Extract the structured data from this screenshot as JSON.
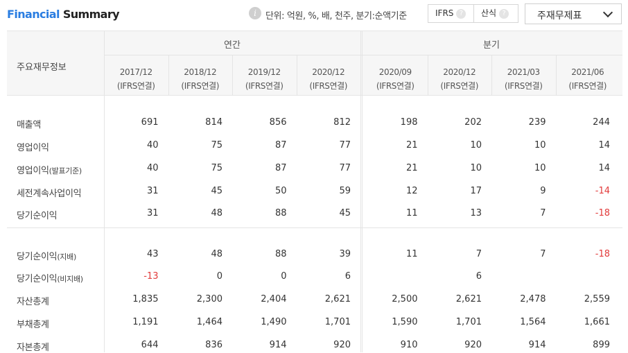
{
  "header": {
    "title_part1": "Financial",
    "title_part2": "Summary",
    "info_glyph": "i",
    "unit_text": "단위: 억원, %, 배, 천주, 분기:순액기준",
    "toggle": [
      {
        "label": "IFRS",
        "help": "?"
      },
      {
        "label": "산식",
        "help": "?"
      }
    ],
    "select_value": "주재무제표"
  },
  "table": {
    "row_header_label": "주요재무정보",
    "groups": [
      {
        "label": "연간"
      },
      {
        "label": "분기"
      }
    ],
    "columns": [
      {
        "period": "2017/12",
        "basis": "(IFRS연결)"
      },
      {
        "period": "2018/12",
        "basis": "(IFRS연결)"
      },
      {
        "period": "2019/12",
        "basis": "(IFRS연결)"
      },
      {
        "period": "2020/12",
        "basis": "(IFRS연결)"
      },
      {
        "period": "2020/09",
        "basis": "(IFRS연결)"
      },
      {
        "period": "2020/12",
        "basis": "(IFRS연결)"
      },
      {
        "period": "2021/03",
        "basis": "(IFRS연결)"
      },
      {
        "period": "2021/06",
        "basis": "(IFRS연결)"
      }
    ],
    "rows": [
      {
        "label": "매출액",
        "suffix": "",
        "values": [
          "691",
          "814",
          "856",
          "812",
          "198",
          "202",
          "239",
          "244"
        ]
      },
      {
        "label": "영업이익",
        "suffix": "",
        "values": [
          "40",
          "75",
          "87",
          "77",
          "21",
          "10",
          "10",
          "14"
        ]
      },
      {
        "label": "영업이익",
        "suffix": "(발표기준)",
        "values": [
          "40",
          "75",
          "87",
          "77",
          "21",
          "10",
          "10",
          "14"
        ]
      },
      {
        "label": "세전계속사업이익",
        "suffix": "",
        "values": [
          "31",
          "45",
          "50",
          "59",
          "12",
          "17",
          "9",
          "-14"
        ]
      },
      {
        "label": "당기순이익",
        "suffix": "",
        "values": [
          "31",
          "48",
          "88",
          "45",
          "11",
          "13",
          "7",
          "-18"
        ]
      },
      {
        "label": "당기순이익",
        "suffix": "(지배)",
        "values": [
          "43",
          "48",
          "88",
          "39",
          "11",
          "7",
          "7",
          "-18"
        ]
      },
      {
        "label": "당기순이익",
        "suffix": "(비지배)",
        "values": [
          "-13",
          "0",
          "0",
          "6",
          "",
          "6",
          "",
          ""
        ]
      },
      {
        "label": "자산총계",
        "suffix": "",
        "values": [
          "1,835",
          "2,300",
          "2,404",
          "2,621",
          "2,500",
          "2,621",
          "2,478",
          "2,559"
        ]
      },
      {
        "label": "부채총계",
        "suffix": "",
        "values": [
          "1,191",
          "1,464",
          "1,490",
          "1,701",
          "1,590",
          "1,701",
          "1,564",
          "1,661"
        ]
      },
      {
        "label": "자본총계",
        "suffix": "",
        "values": [
          "644",
          "836",
          "914",
          "920",
          "910",
          "920",
          "914",
          "899"
        ]
      }
    ],
    "negative_color": "#e23b3b",
    "accent_color": "#2a7de1"
  }
}
